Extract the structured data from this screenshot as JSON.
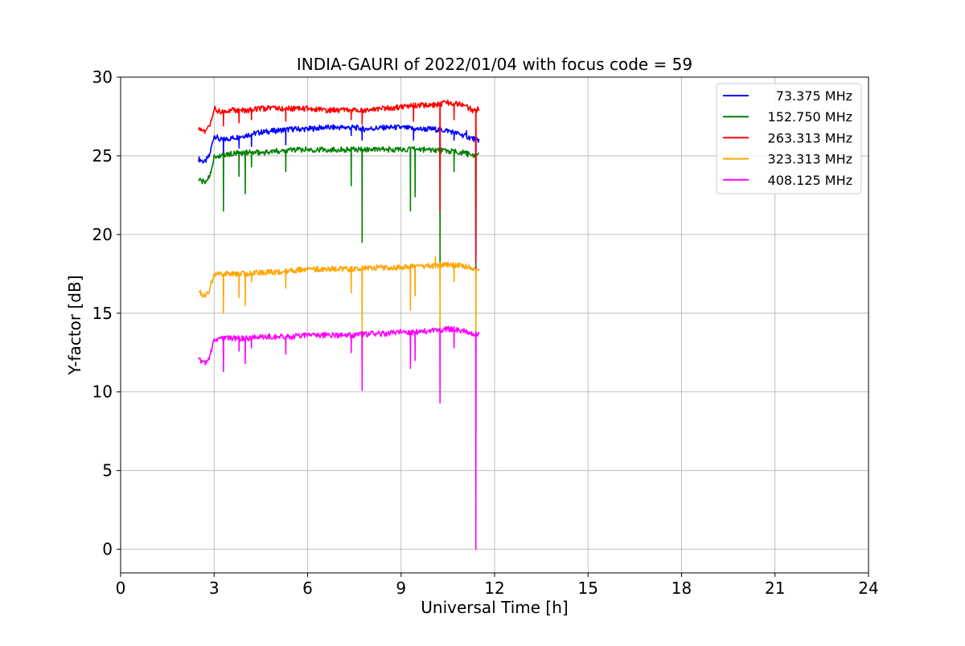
{
  "chart_data": {
    "type": "line",
    "title": "INDIA-GAURI of 2022/01/04 with focus code = 59",
    "xlabel": "Universal Time [h]",
    "ylabel": "Y-factor [dB]",
    "xlim": [
      0,
      24
    ],
    "ylim": [
      -1.5,
      30
    ],
    "xticks": [
      0,
      3,
      6,
      9,
      12,
      15,
      18,
      21,
      24
    ],
    "yticks": [
      0,
      5,
      10,
      15,
      20,
      25,
      30
    ],
    "grid": true,
    "legend_position": "top-right",
    "series": [
      {
        "name": "73.375 MHz",
        "color": "#0000ff",
        "points": [
          [
            2.5,
            24.8
          ],
          [
            2.7,
            24.6
          ],
          [
            2.85,
            25.0
          ],
          [
            3.0,
            26.3
          ],
          [
            3.2,
            26.0
          ],
          [
            3.5,
            26.1
          ],
          [
            4.0,
            26.3
          ],
          [
            4.5,
            26.5
          ],
          [
            5.0,
            26.6
          ],
          [
            5.5,
            26.7
          ],
          [
            6.0,
            26.7
          ],
          [
            6.5,
            26.8
          ],
          [
            7.0,
            26.8
          ],
          [
            7.5,
            26.8
          ],
          [
            7.8,
            26.7
          ],
          [
            8.5,
            26.8
          ],
          [
            9.0,
            26.8
          ],
          [
            9.5,
            26.7
          ],
          [
            10.0,
            26.7
          ],
          [
            10.5,
            26.6
          ],
          [
            11.0,
            26.3
          ],
          [
            11.3,
            26.1
          ],
          [
            11.5,
            26.0
          ]
        ],
        "spikes": [
          [
            3.3,
            25.0
          ],
          [
            3.8,
            25.5
          ],
          [
            4.2,
            25.6
          ],
          [
            5.3,
            25.7
          ],
          [
            7.4,
            26.3
          ],
          [
            7.75,
            26.0
          ],
          [
            9.4,
            26.0
          ],
          [
            10.25,
            24.0
          ],
          [
            10.7,
            26.0
          ],
          [
            11.1,
            26.6
          ],
          [
            11.4,
            17.8
          ]
        ]
      },
      {
        "name": "152.750 MHz",
        "color": "#008000",
        "points": [
          [
            2.5,
            23.5
          ],
          [
            2.7,
            23.3
          ],
          [
            2.85,
            23.7
          ],
          [
            3.0,
            24.9
          ],
          [
            3.2,
            25.0
          ],
          [
            3.5,
            25.1
          ],
          [
            4.0,
            25.2
          ],
          [
            4.5,
            25.2
          ],
          [
            5.0,
            25.3
          ],
          [
            5.5,
            25.4
          ],
          [
            6.0,
            25.4
          ],
          [
            6.5,
            25.4
          ],
          [
            7.0,
            25.4
          ],
          [
            7.5,
            25.4
          ],
          [
            8.0,
            25.4
          ],
          [
            8.5,
            25.4
          ],
          [
            9.0,
            25.4
          ],
          [
            9.5,
            25.4
          ],
          [
            10.0,
            25.4
          ],
          [
            10.5,
            25.3
          ],
          [
            11.0,
            25.2
          ],
          [
            11.3,
            25.0
          ],
          [
            11.5,
            25.0
          ]
        ],
        "spikes": [
          [
            3.3,
            21.5
          ],
          [
            3.8,
            23.7
          ],
          [
            4.0,
            22.6
          ],
          [
            4.2,
            24.3
          ],
          [
            5.3,
            24.0
          ],
          [
            7.4,
            23.1
          ],
          [
            7.75,
            19.5
          ],
          [
            9.3,
            21.5
          ],
          [
            9.45,
            22.4
          ],
          [
            10.25,
            18.2
          ],
          [
            10.7,
            24.0
          ],
          [
            11.4,
            18.0
          ]
        ]
      },
      {
        "name": "263.313 MHz",
        "color": "#ff0000",
        "points": [
          [
            2.5,
            26.8
          ],
          [
            2.7,
            26.5
          ],
          [
            2.85,
            26.8
          ],
          [
            3.0,
            28.0
          ],
          [
            3.2,
            27.8
          ],
          [
            3.5,
            27.9
          ],
          [
            4.0,
            27.9
          ],
          [
            4.5,
            28.0
          ],
          [
            5.0,
            28.0
          ],
          [
            5.5,
            28.0
          ],
          [
            6.0,
            28.0
          ],
          [
            6.5,
            27.9
          ],
          [
            7.0,
            27.9
          ],
          [
            7.5,
            27.9
          ],
          [
            8.0,
            27.9
          ],
          [
            8.5,
            28.0
          ],
          [
            9.0,
            28.1
          ],
          [
            9.5,
            28.2
          ],
          [
            10.0,
            28.2
          ],
          [
            10.5,
            28.4
          ],
          [
            11.0,
            28.2
          ],
          [
            11.3,
            27.9
          ],
          [
            11.5,
            28.0
          ]
        ],
        "spikes": [
          [
            3.3,
            26.9
          ],
          [
            3.8,
            27.1
          ],
          [
            4.2,
            27.3
          ],
          [
            5.3,
            27.2
          ],
          [
            7.4,
            27.3
          ],
          [
            7.75,
            27.0
          ],
          [
            9.4,
            27.2
          ],
          [
            10.25,
            21.5
          ],
          [
            10.7,
            27.3
          ],
          [
            11.4,
            18.2
          ]
        ]
      },
      {
        "name": "323.313 MHz",
        "color": "#ffa500",
        "points": [
          [
            2.5,
            16.4
          ],
          [
            2.7,
            16.1
          ],
          [
            2.85,
            16.4
          ],
          [
            3.0,
            17.5
          ],
          [
            3.2,
            17.5
          ],
          [
            3.5,
            17.5
          ],
          [
            4.0,
            17.5
          ],
          [
            4.5,
            17.6
          ],
          [
            5.0,
            17.6
          ],
          [
            5.5,
            17.7
          ],
          [
            6.0,
            17.8
          ],
          [
            6.5,
            17.8
          ],
          [
            7.0,
            17.8
          ],
          [
            7.5,
            17.8
          ],
          [
            8.0,
            17.9
          ],
          [
            8.5,
            17.9
          ],
          [
            9.0,
            17.9
          ],
          [
            9.5,
            18.0
          ],
          [
            10.0,
            18.0
          ],
          [
            10.5,
            18.1
          ],
          [
            11.0,
            18.0
          ],
          [
            11.3,
            17.8
          ],
          [
            11.5,
            17.8
          ]
        ],
        "spikes": [
          [
            3.3,
            15.0
          ],
          [
            3.8,
            16.0
          ],
          [
            4.0,
            15.5
          ],
          [
            4.2,
            17.0
          ],
          [
            5.3,
            16.6
          ],
          [
            7.4,
            16.3
          ],
          [
            7.75,
            13.8
          ],
          [
            9.3,
            15.2
          ],
          [
            9.45,
            16.1
          ],
          [
            10.1,
            18.6
          ],
          [
            10.25,
            14.0
          ],
          [
            10.7,
            17.0
          ],
          [
            11.4,
            13.6
          ]
        ]
      },
      {
        "name": "408.125 MHz",
        "color": "#ff00ff",
        "points": [
          [
            2.5,
            12.1
          ],
          [
            2.7,
            11.8
          ],
          [
            2.85,
            12.1
          ],
          [
            3.0,
            13.3
          ],
          [
            3.2,
            13.4
          ],
          [
            3.5,
            13.4
          ],
          [
            4.0,
            13.4
          ],
          [
            4.5,
            13.5
          ],
          [
            5.0,
            13.5
          ],
          [
            5.5,
            13.5
          ],
          [
            6.0,
            13.6
          ],
          [
            6.5,
            13.6
          ],
          [
            7.0,
            13.6
          ],
          [
            7.5,
            13.6
          ],
          [
            8.0,
            13.7
          ],
          [
            8.5,
            13.7
          ],
          [
            9.0,
            13.8
          ],
          [
            9.5,
            13.8
          ],
          [
            10.0,
            13.9
          ],
          [
            10.5,
            14.0
          ],
          [
            11.0,
            13.9
          ],
          [
            11.3,
            13.7
          ],
          [
            11.5,
            13.7
          ]
        ],
        "spikes": [
          [
            3.3,
            11.3
          ],
          [
            3.8,
            12.6
          ],
          [
            4.0,
            11.8
          ],
          [
            4.2,
            12.8
          ],
          [
            5.3,
            12.4
          ],
          [
            7.4,
            12.5
          ],
          [
            7.75,
            10.1
          ],
          [
            9.3,
            11.5
          ],
          [
            9.45,
            12.0
          ],
          [
            10.25,
            9.3
          ],
          [
            10.7,
            12.8
          ],
          [
            11.4,
            0.0
          ]
        ]
      }
    ]
  }
}
